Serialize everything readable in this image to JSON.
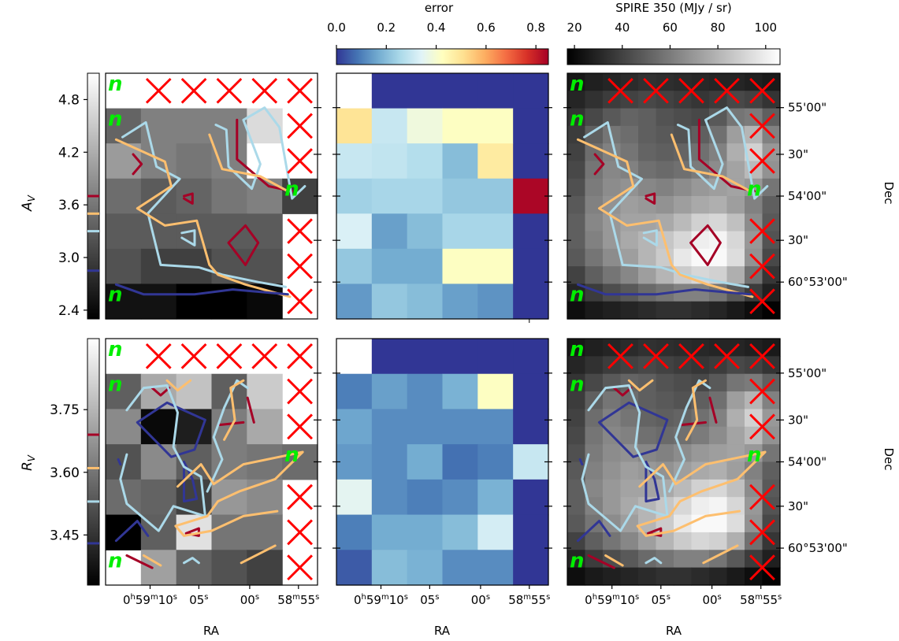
{
  "colors": {
    "cold": "#313695",
    "mid_blue": "#abd9e9",
    "warm": "#fdbf6f",
    "hot": "#a50026",
    "cross": "#ff0000",
    "n_marker": "#00ee00"
  },
  "labels": {
    "ra": "RA",
    "dec": "Dec",
    "av": "A_V",
    "rv": "R_V",
    "error_cbar": "error",
    "spire_cbar": "SPIRE 350 (MJy / sr)",
    "n_marker": "n"
  },
  "chart_data": [
    {
      "type": "heatmap",
      "name": "A_V map",
      "ylabel": "A_V",
      "xlabel": "",
      "colormap": "gray",
      "colorbar_range": [
        2.3,
        5.1
      ],
      "colorbar_ticks": [
        "2.4",
        "3.0",
        "3.6",
        "4.2",
        "4.8"
      ],
      "contour_levels_colors": [
        "#313695",
        "#abd9e9",
        "#fdbf6f",
        "#a50026"
      ],
      "contour_levels": [
        2.85,
        3.3,
        3.5,
        3.7
      ],
      "grid_rows": 7,
      "grid_cols": 6,
      "values": [
        [
          null,
          null,
          null,
          null,
          null,
          null
        ],
        [
          3.4,
          3.7,
          3.7,
          3.7,
          4.7,
          null
        ],
        [
          4.0,
          3.7,
          3.6,
          3.7,
          5.1,
          null
        ],
        [
          3.5,
          3.3,
          3.4,
          3.6,
          3.7,
          3.0
        ],
        [
          3.3,
          3.3,
          3.3,
          3.3,
          3.3,
          null
        ],
        [
          3.2,
          3.0,
          3.0,
          3.2,
          3.2,
          null
        ],
        [
          2.5,
          2.5,
          2.3,
          2.3,
          2.4,
          null
        ]
      ],
      "flags": [
        [
          "n",
          "x",
          "x",
          "x",
          "x",
          "x"
        ],
        [
          "n",
          "",
          "",
          "",
          "",
          "x"
        ],
        [
          "",
          "",
          "",
          "",
          "",
          "x"
        ],
        [
          "",
          "",
          "",
          "",
          "",
          "n"
        ],
        [
          "",
          "",
          "",
          "",
          "",
          "x"
        ],
        [
          "",
          "",
          "",
          "",
          "",
          "x"
        ],
        [
          "n",
          "",
          "",
          "",
          "",
          "x"
        ]
      ]
    },
    {
      "type": "heatmap",
      "name": "A_V error",
      "colormap": "RdYlBu_r",
      "colorbar_range": [
        0.0,
        0.85
      ],
      "colorbar_ticks": [
        "0.0",
        "0.2",
        "0.4",
        "0.6",
        "0.8"
      ],
      "grid_rows": 7,
      "grid_cols": 6,
      "values": [
        [
          null,
          0.0,
          0.0,
          0.0,
          0.0,
          0.0
        ],
        [
          0.5,
          0.3,
          0.38,
          0.42,
          0.42,
          0.0
        ],
        [
          0.3,
          0.29,
          0.27,
          0.2,
          0.48,
          0.0
        ],
        [
          0.24,
          0.25,
          0.25,
          0.22,
          0.22,
          0.84
        ],
        [
          0.33,
          0.15,
          0.2,
          0.25,
          0.25,
          0.0
        ],
        [
          0.22,
          0.17,
          0.17,
          0.42,
          0.42,
          0.0
        ],
        [
          0.14,
          0.22,
          0.2,
          0.15,
          0.13,
          0.0
        ]
      ]
    },
    {
      "type": "heatmap",
      "name": "SPIRE 350 A_V contours",
      "colormap": "gray",
      "colorbar_range": [
        17,
        106
      ],
      "colorbar_ticks": [
        "20",
        "40",
        "60",
        "80",
        "100"
      ],
      "right_ticks": [
        "55'00\"",
        "30\"",
        "54'00\"",
        "30\"",
        "60°53'00\""
      ],
      "ylabel": "Dec",
      "grid_rows": 14,
      "grid_cols": 12,
      "values": [
        [
          25,
          28,
          30,
          32,
          34,
          33,
          32,
          31,
          30,
          30,
          28,
          26
        ],
        [
          30,
          34,
          38,
          40,
          42,
          40,
          38,
          36,
          38,
          42,
          40,
          35
        ],
        [
          35,
          42,
          48,
          52,
          50,
          46,
          44,
          42,
          48,
          58,
          60,
          50
        ],
        [
          38,
          50,
          58,
          55,
          50,
          48,
          46,
          50,
          56,
          72,
          80,
          62
        ],
        [
          40,
          55,
          62,
          58,
          52,
          50,
          52,
          56,
          62,
          78,
          90,
          70
        ],
        [
          42,
          58,
          64,
          62,
          56,
          54,
          56,
          60,
          66,
          74,
          82,
          68
        ],
        [
          45,
          60,
          66,
          68,
          64,
          62,
          66,
          70,
          72,
          74,
          70,
          58
        ],
        [
          48,
          62,
          68,
          72,
          70,
          68,
          72,
          76,
          78,
          72,
          62,
          50
        ],
        [
          50,
          64,
          70,
          74,
          74,
          76,
          82,
          90,
          92,
          84,
          66,
          48
        ],
        [
          50,
          62,
          70,
          76,
          80,
          86,
          92,
          100,
          102,
          92,
          70,
          46
        ],
        [
          48,
          58,
          66,
          72,
          80,
          88,
          98,
          104,
          104,
          94,
          68,
          42
        ],
        [
          40,
          50,
          58,
          64,
          72,
          80,
          88,
          92,
          90,
          78,
          56,
          36
        ],
        [
          30,
          38,
          44,
          48,
          54,
          58,
          62,
          62,
          58,
          48,
          38,
          28
        ],
        [
          22,
          26,
          28,
          30,
          32,
          34,
          34,
          32,
          30,
          26,
          22,
          18
        ]
      ]
    },
    {
      "type": "heatmap",
      "name": "R_V map",
      "ylabel": "R_V",
      "xlabel": "RA",
      "colormap": "gray",
      "colorbar_range": [
        3.33,
        3.92
      ],
      "colorbar_ticks": [
        "3.45",
        "3.60",
        "3.75"
      ],
      "x_ticks": [
        "0h59m10s",
        "05s",
        "00s",
        "58m55s"
      ],
      "contour_levels_colors": [
        "#313695",
        "#abd9e9",
        "#fdbf6f",
        "#a50026"
      ],
      "contour_levels": [
        3.43,
        3.53,
        3.61,
        3.69
      ],
      "grid_rows": 7,
      "grid_cols": 6,
      "values": [
        [
          null,
          null,
          null,
          null,
          null,
          null
        ],
        [
          3.55,
          3.72,
          3.78,
          3.55,
          3.8,
          null
        ],
        [
          3.65,
          3.35,
          3.4,
          3.62,
          3.72,
          null
        ],
        [
          3.52,
          3.65,
          3.55,
          3.62,
          3.6,
          3.58
        ],
        [
          3.58,
          3.56,
          3.48,
          3.68,
          3.65,
          null
        ],
        [
          3.33,
          3.55,
          3.85,
          3.6,
          3.6,
          null
        ],
        [
          null,
          3.7,
          3.56,
          3.52,
          3.48,
          null
        ]
      ],
      "flags": [
        [
          "n",
          "x",
          "x",
          "x",
          "x",
          "x"
        ],
        [
          "n",
          "",
          "",
          "",
          "",
          "x"
        ],
        [
          "",
          "",
          "",
          "",
          "",
          "x"
        ],
        [
          "",
          "",
          "",
          "",
          "",
          "n"
        ],
        [
          "",
          "",
          "",
          "",
          "",
          "x"
        ],
        [
          "",
          "",
          "",
          "",
          "",
          "x"
        ],
        [
          "n",
          "",
          "",
          "",
          "",
          "x"
        ]
      ]
    },
    {
      "type": "heatmap",
      "name": "R_V error",
      "xlabel": "RA",
      "colormap": "RdYlBu_r",
      "x_ticks": [
        "0h59m10s",
        "05s",
        "00s",
        "58m55s"
      ],
      "grid_rows": 7,
      "grid_cols": 6,
      "values": [
        [
          null,
          0.0,
          0.0,
          0.0,
          0.0,
          0.0
        ],
        [
          0.1,
          0.15,
          0.12,
          0.18,
          0.42,
          0.0
        ],
        [
          0.16,
          0.12,
          0.12,
          0.12,
          0.12,
          0.0
        ],
        [
          0.14,
          0.12,
          0.17,
          0.08,
          0.1,
          0.3
        ],
        [
          0.35,
          0.12,
          0.1,
          0.12,
          0.18,
          0.0
        ],
        [
          0.1,
          0.17,
          0.17,
          0.2,
          0.32,
          0.0
        ],
        [
          0.05,
          0.2,
          0.18,
          0.12,
          0.12,
          0.0
        ]
      ]
    },
    {
      "type": "heatmap",
      "name": "SPIRE 350 R_V contours",
      "xlabel": "RA",
      "x_ticks": [
        "0h59m10s",
        "05s",
        "00s",
        "58m55s"
      ],
      "right_ticks": [
        "55'00\"",
        "30\"",
        "54'00\"",
        "30\"",
        "60°53'00\""
      ],
      "ylabel": "Dec",
      "colormap": "gray",
      "grid_rows": 14,
      "grid_cols": 12
    }
  ]
}
